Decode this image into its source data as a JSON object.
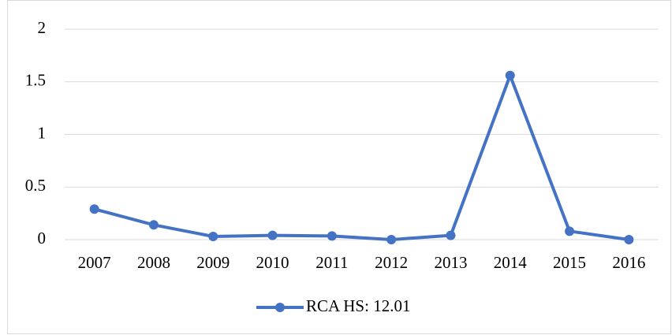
{
  "chart_data": {
    "type": "line",
    "categories": [
      "2007",
      "2008",
      "2009",
      "2010",
      "2011",
      "2012",
      "2013",
      "2014",
      "2015",
      "2016"
    ],
    "series": [
      {
        "name": "RCA HS: 12.01",
        "color": "#4472c4",
        "values": [
          0.29,
          0.14,
          0.03,
          0.04,
          0.035,
          0.0,
          0.04,
          1.56,
          0.08,
          0.0
        ]
      }
    ],
    "ylim": [
      0,
      2
    ],
    "yticks": [
      0,
      0.5,
      1,
      1.5,
      2
    ],
    "grid": true,
    "legend": "bottom"
  }
}
